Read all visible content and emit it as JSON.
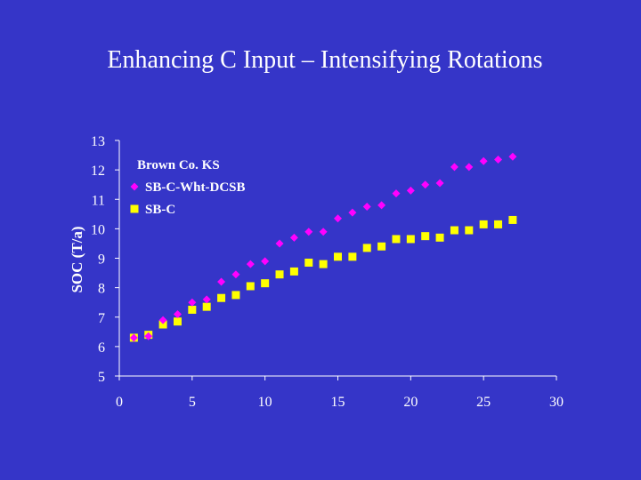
{
  "slide": {
    "title": "Enhancing C Input – Intensifying Rotations"
  },
  "colors": {
    "background": "#3535c8",
    "series_a": "#ff00ff",
    "series_b": "#ffff00",
    "axis": "#ffffff"
  },
  "chart_data": {
    "type": "scatter",
    "title": "",
    "xlabel": "",
    "ylabel": "SOC (T/a)",
    "xlim": [
      0,
      30
    ],
    "ylim": [
      5,
      13
    ],
    "xticks": [
      0,
      5,
      10,
      15,
      20,
      25,
      30
    ],
    "yticks": [
      5,
      6,
      7,
      8,
      9,
      10,
      11,
      12,
      13
    ],
    "grid": false,
    "legend_title": "Brown Co. KS",
    "legend_position": "top-left",
    "series": [
      {
        "name": "SB-C-Wht-DCSB",
        "marker": "diamond",
        "x": [
          1,
          2,
          3,
          4,
          5,
          6,
          7,
          8,
          9,
          10,
          11,
          12,
          13,
          14,
          15,
          16,
          17,
          18,
          19,
          20,
          21,
          22,
          23,
          24,
          25,
          26,
          27
        ],
        "y": [
          6.3,
          6.35,
          6.9,
          7.1,
          7.5,
          7.6,
          8.2,
          8.45,
          8.8,
          8.9,
          9.5,
          9.7,
          9.9,
          9.9,
          10.35,
          10.55,
          10.75,
          10.8,
          11.2,
          11.3,
          11.5,
          11.55,
          12.1,
          12.1,
          12.3,
          12.35,
          12.45
        ]
      },
      {
        "name": "SB-C",
        "marker": "square",
        "x": [
          1,
          2,
          3,
          4,
          5,
          6,
          7,
          8,
          9,
          10,
          11,
          12,
          13,
          14,
          15,
          16,
          17,
          18,
          19,
          20,
          21,
          22,
          23,
          24,
          25,
          26,
          27
        ],
        "y": [
          6.3,
          6.4,
          6.75,
          6.85,
          7.25,
          7.35,
          7.65,
          7.75,
          8.05,
          8.15,
          8.45,
          8.55,
          8.85,
          8.8,
          9.05,
          9.05,
          9.35,
          9.4,
          9.65,
          9.65,
          9.75,
          9.7,
          9.95,
          9.95,
          10.15,
          10.15,
          10.3
        ]
      }
    ]
  }
}
